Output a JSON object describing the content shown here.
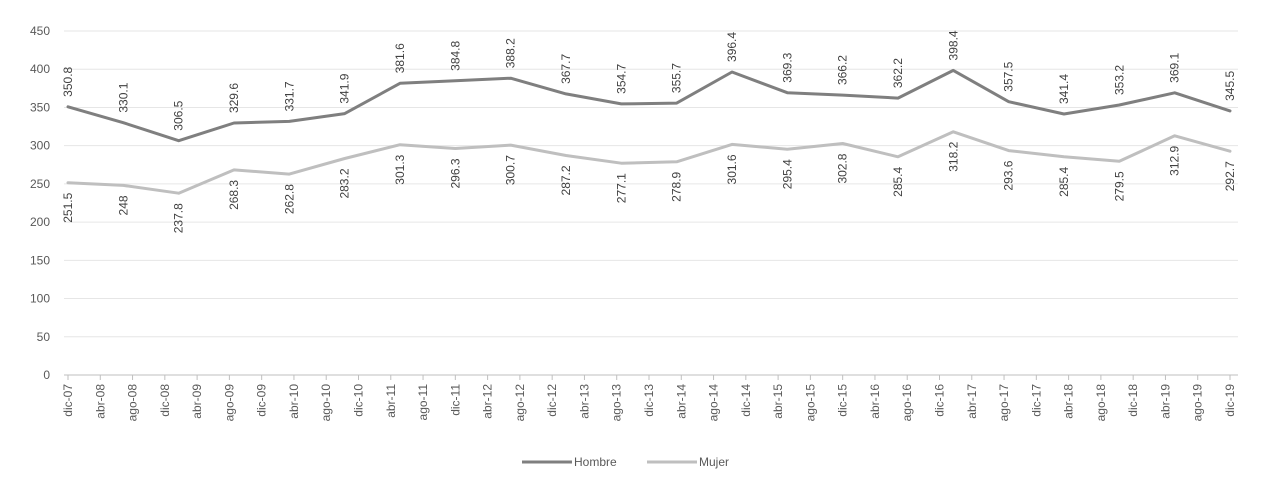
{
  "chart_data": {
    "type": "line",
    "title": "",
    "xlabel": "",
    "ylabel": "",
    "ylim": [
      0,
      450
    ],
    "yticks": [
      0,
      50,
      100,
      150,
      200,
      250,
      300,
      350,
      400,
      450
    ],
    "grid": true,
    "legend_position": "bottom",
    "categories": [
      "dic-07",
      "abr-08",
      "ago-08",
      "dic-08",
      "abr-09",
      "ago-09",
      "dic-09",
      "abr-10",
      "ago-10",
      "dic-10",
      "abr-11",
      "ago-11",
      "dic-11",
      "abr-12",
      "ago-12",
      "dic-12",
      "abr-13",
      "ago-13",
      "dic-13",
      "abr-14",
      "ago-14",
      "dic-14",
      "abr-15",
      "ago-15",
      "dic-15",
      "abr-16",
      "ago-16",
      "dic-16",
      "abr-17",
      "ago-17",
      "dic-17",
      "abr-18",
      "ago-18",
      "dic-18",
      "abr-19",
      "ago-19",
      "dic-19"
    ],
    "series": [
      {
        "name": "Hombre",
        "color": "#7f7f7f",
        "label_position": "above",
        "points": [
          {
            "x": "dic-07",
            "y": 350.8,
            "label": "350.8"
          },
          {
            "x": "dic-08",
            "y": 330.1,
            "label": "330.1"
          },
          {
            "x": "dic-09",
            "y": 306.5,
            "label": "306.5"
          },
          {
            "x": "dic-10",
            "y": 329.6,
            "label": "329.6"
          },
          {
            "x": "dic-11",
            "y": 331.7,
            "label": "331.7"
          },
          {
            "x": "dic-12",
            "y": 341.9,
            "label": "341.9"
          },
          {
            "x": "dic-13",
            "y": 381.6,
            "label": "381.6"
          },
          {
            "x": "dic-14",
            "y": 384.8,
            "label": "384.8"
          },
          {
            "x": "dic-15",
            "y": 388.2,
            "label": "388.2"
          },
          {
            "x": "dic-16",
            "y": 367.7,
            "label": "367.7"
          },
          {
            "x": "abr-17",
            "y": 354.7,
            "label": "354.7"
          },
          {
            "x": "ago-17",
            "y": 355.7,
            "label": "355.7"
          },
          {
            "x": "dic-17",
            "y": 396.4,
            "label": "396.4"
          },
          {
            "x": "abr-18",
            "y": 369.3,
            "label": "369.3"
          },
          {
            "x": "ago-18",
            "y": 366.2,
            "label": "366.2"
          },
          {
            "x": "dic-18",
            "y": 362.2,
            "label": "362.2"
          },
          {
            "x": "abr-19",
            "y": 398.4,
            "label": "398.4"
          },
          {
            "x": "ago-19",
            "y": 357.5,
            "label": "357.5"
          },
          {
            "x": "dic-19",
            "y": 341.4,
            "label": "341.4"
          },
          {
            "x": "dic-19",
            "y": 353.2,
            "label": "353.2"
          },
          {
            "x": "dic-19",
            "y": 369.1,
            "label": "369.1"
          },
          {
            "x": "dic-19",
            "y": 345.5,
            "label": "345.5"
          }
        ]
      },
      {
        "name": "Mujer",
        "color": "#bfbfbf",
        "label_position": "below",
        "points": [
          {
            "x": "dic-07",
            "y": 251.5,
            "label": "251.5"
          },
          {
            "x": "dic-08",
            "y": 248,
            "label": "248"
          },
          {
            "x": "dic-09",
            "y": 237.8,
            "label": "237.8"
          },
          {
            "x": "dic-10",
            "y": 268.3,
            "label": "268.3"
          },
          {
            "x": "dic-11",
            "y": 262.8,
            "label": "262.8"
          },
          {
            "x": "dic-12",
            "y": 283.2,
            "label": "283.2"
          },
          {
            "x": "dic-13",
            "y": 301.3,
            "label": "301.3"
          },
          {
            "x": "dic-14",
            "y": 296.3,
            "label": "296.3"
          },
          {
            "x": "dic-15",
            "y": 300.7,
            "label": "300.7"
          },
          {
            "x": "dic-16",
            "y": 287.2,
            "label": "287.2"
          },
          {
            "x": "abr-17",
            "y": 277.1,
            "label": "277.1"
          },
          {
            "x": "ago-17",
            "y": 278.9,
            "label": "278.9"
          },
          {
            "x": "dic-17",
            "y": 301.6,
            "label": "301.6"
          },
          {
            "x": "abr-18",
            "y": 295.4,
            "label": "295.4"
          },
          {
            "x": "ago-18",
            "y": 302.8,
            "label": "302.8"
          },
          {
            "x": "dic-18",
            "y": 285.4,
            "label": "285.4"
          },
          {
            "x": "abr-19",
            "y": 318.2,
            "label": "318.2"
          },
          {
            "x": "ago-19",
            "y": 293.6,
            "label": "293.6"
          },
          {
            "x": "dic-19",
            "y": 285.4,
            "label": "285.4"
          },
          {
            "x": "dic-19",
            "y": 279.5,
            "label": "279.5"
          },
          {
            "x": "dic-19",
            "y": 312.9,
            "label": "312.9"
          },
          {
            "x": "dic-19",
            "y": 292.7,
            "label": "292.7"
          }
        ]
      }
    ]
  }
}
